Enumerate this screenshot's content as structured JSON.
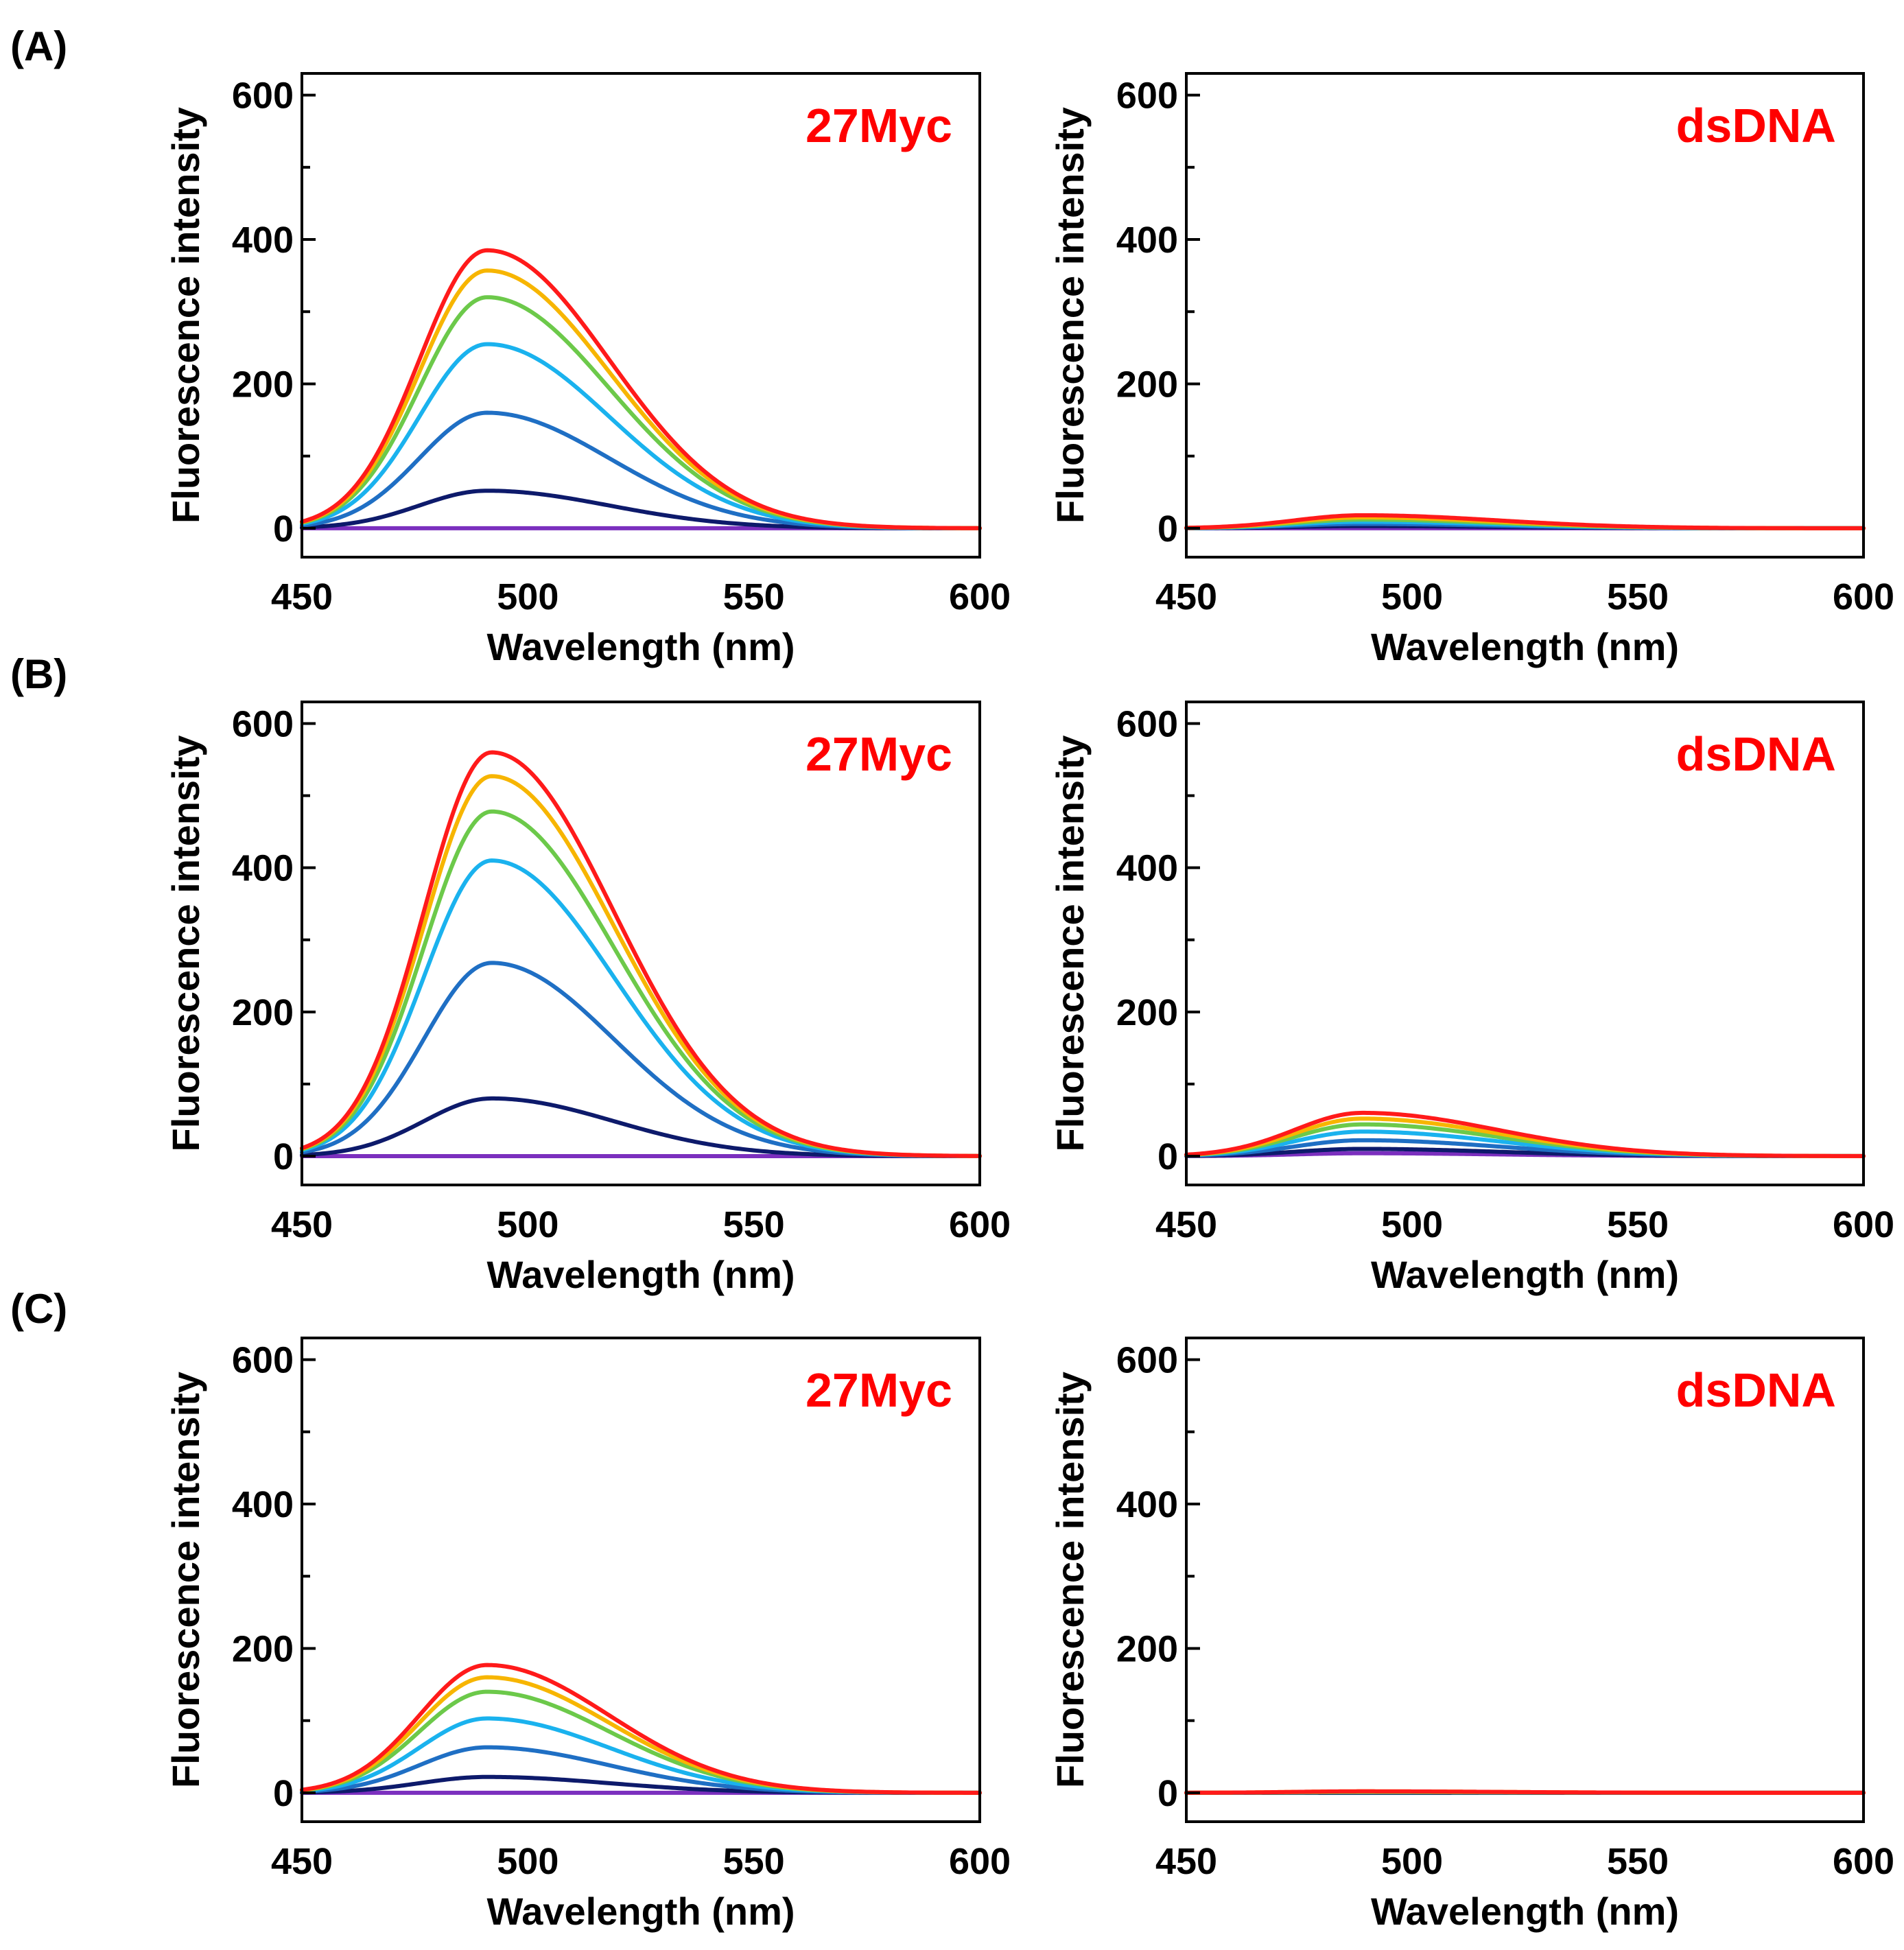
{
  "figure": {
    "panel_letters": [
      "(A)",
      "(B)",
      "(C)"
    ],
    "series_colors": [
      "#7b2fbe",
      "#0d1a6b",
      "#1f6fc4",
      "#1ab2ee",
      "#6cc94a",
      "#f7b500",
      "#ff1a1a"
    ],
    "label_color": "#ff0000"
  },
  "chart_data": [
    {
      "id": "A-27Myc",
      "row": 0,
      "col": 0,
      "type": "line",
      "label": "27Myc",
      "xlabel": "Wavelength (nm)",
      "ylabel": "Fluorescence intensity",
      "xlim": [
        450,
        600
      ],
      "ylim": [
        -40,
        630
      ],
      "xticks": [
        450,
        500,
        550,
        600
      ],
      "yticks": [
        0,
        200,
        400,
        600
      ],
      "minor_yticks": [
        100,
        300,
        500
      ],
      "peak_nm": 491,
      "series": [
        {
          "name": "s1",
          "peak": 0
        },
        {
          "name": "s2",
          "peak": 52
        },
        {
          "name": "s3",
          "peak": 160
        },
        {
          "name": "s4",
          "peak": 255
        },
        {
          "name": "s5",
          "peak": 320
        },
        {
          "name": "s6",
          "peak": 357
        },
        {
          "name": "s7",
          "peak": 385
        }
      ]
    },
    {
      "id": "A-dsDNA",
      "row": 0,
      "col": 1,
      "type": "line",
      "label": "dsDNA",
      "xlabel": "Wavelength (nm)",
      "ylabel": "Fluorescence intensity",
      "xlim": [
        450,
        600
      ],
      "ylim": [
        -40,
        630
      ],
      "xticks": [
        450,
        500,
        550,
        600
      ],
      "yticks": [
        0,
        200,
        400,
        600
      ],
      "minor_yticks": [
        100,
        300,
        500
      ],
      "peak_nm": 489,
      "series": [
        {
          "name": "s1",
          "peak": 0
        },
        {
          "name": "s2",
          "peak": 3
        },
        {
          "name": "s3",
          "peak": 6
        },
        {
          "name": "s4",
          "peak": 9
        },
        {
          "name": "s5",
          "peak": 12
        },
        {
          "name": "s6",
          "peak": 15
        },
        {
          "name": "s7",
          "peak": 18
        }
      ]
    },
    {
      "id": "B-27Myc",
      "row": 1,
      "col": 0,
      "type": "line",
      "label": "27Myc",
      "xlabel": "Wavelength (nm)",
      "ylabel": "Fluorescence intensity",
      "xlim": [
        450,
        600
      ],
      "ylim": [
        -40,
        630
      ],
      "xticks": [
        450,
        500,
        550,
        600
      ],
      "yticks": [
        0,
        200,
        400,
        600
      ],
      "minor_yticks": [
        100,
        300,
        500
      ],
      "peak_nm": 492,
      "series": [
        {
          "name": "s1",
          "peak": 0
        },
        {
          "name": "s2",
          "peak": 80
        },
        {
          "name": "s3",
          "peak": 268
        },
        {
          "name": "s4",
          "peak": 410
        },
        {
          "name": "s5",
          "peak": 478
        },
        {
          "name": "s6",
          "peak": 527
        },
        {
          "name": "s7",
          "peak": 560
        }
      ]
    },
    {
      "id": "B-dsDNA",
      "row": 1,
      "col": 1,
      "type": "line",
      "label": "dsDNA",
      "xlabel": "Wavelength (nm)",
      "ylabel": "Fluorescence intensity",
      "xlim": [
        450,
        600
      ],
      "ylim": [
        -40,
        630
      ],
      "xticks": [
        450,
        500,
        550,
        600
      ],
      "yticks": [
        0,
        200,
        400,
        600
      ],
      "minor_yticks": [
        100,
        300,
        500
      ],
      "peak_nm": 489,
      "series": [
        {
          "name": "s1",
          "peak": 4
        },
        {
          "name": "s2",
          "peak": 10
        },
        {
          "name": "s3",
          "peak": 22
        },
        {
          "name": "s4",
          "peak": 34
        },
        {
          "name": "s5",
          "peak": 44
        },
        {
          "name": "s6",
          "peak": 52
        },
        {
          "name": "s7",
          "peak": 60
        }
      ]
    },
    {
      "id": "C-27Myc",
      "row": 2,
      "col": 0,
      "type": "line",
      "label": "27Myc",
      "xlabel": "Wavelength (nm)",
      "ylabel": "Fluorescence intensity",
      "xlim": [
        450,
        600
      ],
      "ylim": [
        -40,
        630
      ],
      "xticks": [
        450,
        500,
        550,
        600
      ],
      "yticks": [
        0,
        200,
        400,
        600
      ],
      "minor_yticks": [
        100,
        300,
        500
      ],
      "peak_nm": 491,
      "series": [
        {
          "name": "s1",
          "peak": 0
        },
        {
          "name": "s2",
          "peak": 22
        },
        {
          "name": "s3",
          "peak": 63
        },
        {
          "name": "s4",
          "peak": 103
        },
        {
          "name": "s5",
          "peak": 140
        },
        {
          "name": "s6",
          "peak": 160
        },
        {
          "name": "s7",
          "peak": 177
        }
      ]
    },
    {
      "id": "C-dsDNA",
      "row": 2,
      "col": 1,
      "type": "line",
      "label": "dsDNA",
      "xlabel": "Wavelength (nm)",
      "ylabel": "Fluorescence intensity",
      "xlim": [
        450,
        600
      ],
      "ylim": [
        -40,
        630
      ],
      "xticks": [
        450,
        500,
        550,
        600
      ],
      "yticks": [
        0,
        200,
        400,
        600
      ],
      "minor_yticks": [
        100,
        300,
        500
      ],
      "peak_nm": 489,
      "series": [
        {
          "name": "s1",
          "peak": 0
        },
        {
          "name": "s2",
          "peak": 0
        },
        {
          "name": "s3",
          "peak": 1
        },
        {
          "name": "s4",
          "peak": 1
        },
        {
          "name": "s5",
          "peak": 1
        },
        {
          "name": "s6",
          "peak": 2
        },
        {
          "name": "s7",
          "peak": 2
        }
      ]
    }
  ]
}
